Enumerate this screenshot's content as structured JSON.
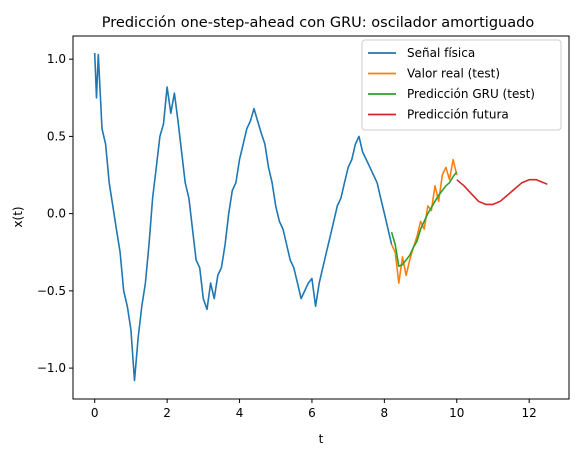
{
  "chart_data": {
    "type": "line",
    "title": "Predicción one-step-ahead con GRU: oscilador amortiguado",
    "xlabel": "t",
    "ylabel": "x(t)",
    "xlim": [
      -0.6,
      13.1
    ],
    "ylim": [
      -1.2,
      1.15
    ],
    "xticks": [
      0,
      2,
      4,
      6,
      8,
      10,
      12
    ],
    "yticks": [
      -1.0,
      -0.5,
      0.0,
      0.5,
      1.0
    ],
    "xtick_labels": [
      "0",
      "2",
      "4",
      "6",
      "8",
      "10",
      "12"
    ],
    "ytick_labels": [
      "−1.0",
      "−0.5",
      "0.0",
      "0.5",
      "1.0"
    ],
    "grid": false,
    "legend_position": "top-right",
    "legend": [
      "Señal física",
      "Valor real (test)",
      "Predicción GRU (test)",
      "Predicción futura"
    ],
    "colors": [
      "#1f77b4",
      "#ff7f0e",
      "#2ca02c",
      "#d62728"
    ],
    "series": [
      {
        "name": "Señal física",
        "x": [
          0.0,
          0.05,
          0.1,
          0.2,
          0.3,
          0.4,
          0.5,
          0.6,
          0.7,
          0.8,
          0.9,
          1.0,
          1.1,
          1.2,
          1.3,
          1.4,
          1.5,
          1.6,
          1.7,
          1.8,
          1.9,
          2.0,
          2.1,
          2.2,
          2.3,
          2.4,
          2.5,
          2.6,
          2.7,
          2.8,
          2.9,
          3.0,
          3.1,
          3.2,
          3.3,
          3.4,
          3.5,
          3.6,
          3.7,
          3.8,
          3.9,
          4.0,
          4.1,
          4.2,
          4.3,
          4.4,
          4.5,
          4.6,
          4.7,
          4.8,
          4.9,
          5.0,
          5.1,
          5.2,
          5.3,
          5.4,
          5.5,
          5.6,
          5.7,
          5.8,
          5.9,
          6.0,
          6.1,
          6.2,
          6.3,
          6.4,
          6.5,
          6.6,
          6.7,
          6.8,
          6.9,
          7.0,
          7.1,
          7.2,
          7.3,
          7.4,
          7.5,
          7.6,
          7.7,
          7.8,
          7.9,
          8.0,
          8.1,
          8.2
        ],
        "y": [
          1.04,
          0.75,
          1.03,
          0.55,
          0.45,
          0.2,
          0.05,
          -0.1,
          -0.25,
          -0.5,
          -0.6,
          -0.75,
          -1.08,
          -0.8,
          -0.6,
          -0.45,
          -0.2,
          0.1,
          0.3,
          0.5,
          0.58,
          0.82,
          0.65,
          0.78,
          0.6,
          0.4,
          0.2,
          0.1,
          -0.1,
          -0.3,
          -0.35,
          -0.55,
          -0.62,
          -0.45,
          -0.55,
          -0.4,
          -0.35,
          -0.2,
          0.0,
          0.15,
          0.2,
          0.35,
          0.45,
          0.55,
          0.6,
          0.68,
          0.6,
          0.52,
          0.45,
          0.3,
          0.2,
          0.05,
          -0.05,
          -0.1,
          -0.2,
          -0.3,
          -0.35,
          -0.45,
          -0.55,
          -0.5,
          -0.45,
          -0.42,
          -0.6,
          -0.45,
          -0.35,
          -0.25,
          -0.15,
          -0.05,
          0.05,
          0.1,
          0.2,
          0.3,
          0.35,
          0.45,
          0.5,
          0.4,
          0.35,
          0.3,
          0.25,
          0.2,
          0.1,
          0.0,
          -0.1,
          -0.2
        ]
      },
      {
        "name": "Valor real (test)",
        "x": [
          8.2,
          8.3,
          8.4,
          8.5,
          8.6,
          8.7,
          8.8,
          8.9,
          9.0,
          9.1,
          9.2,
          9.3,
          9.4,
          9.5,
          9.6,
          9.7,
          9.8,
          9.9,
          10.0
        ],
        "y": [
          -0.2,
          -0.25,
          -0.45,
          -0.28,
          -0.4,
          -0.3,
          -0.22,
          -0.15,
          -0.05,
          -0.1,
          0.05,
          0.02,
          0.18,
          0.08,
          0.25,
          0.3,
          0.22,
          0.35,
          0.25
        ]
      },
      {
        "name": "Predicción GRU (test)",
        "x": [
          8.2,
          8.3,
          8.4,
          8.5,
          8.6,
          8.7,
          8.8,
          8.9,
          9.0,
          9.1,
          9.2,
          9.3,
          9.4,
          9.5,
          9.6,
          9.7,
          9.8,
          9.9,
          10.0
        ],
        "y": [
          -0.12,
          -0.2,
          -0.34,
          -0.33,
          -0.3,
          -0.27,
          -0.22,
          -0.18,
          -0.1,
          -0.05,
          0.0,
          0.04,
          0.08,
          0.12,
          0.15,
          0.18,
          0.2,
          0.24,
          0.27
        ]
      },
      {
        "name": "Predicción futura",
        "x": [
          10.0,
          10.2,
          10.4,
          10.6,
          10.8,
          11.0,
          11.2,
          11.4,
          11.6,
          11.8,
          12.0,
          12.2,
          12.4,
          12.5
        ],
        "y": [
          0.22,
          0.18,
          0.13,
          0.08,
          0.06,
          0.06,
          0.08,
          0.12,
          0.16,
          0.2,
          0.22,
          0.22,
          0.2,
          0.19
        ]
      }
    ]
  }
}
